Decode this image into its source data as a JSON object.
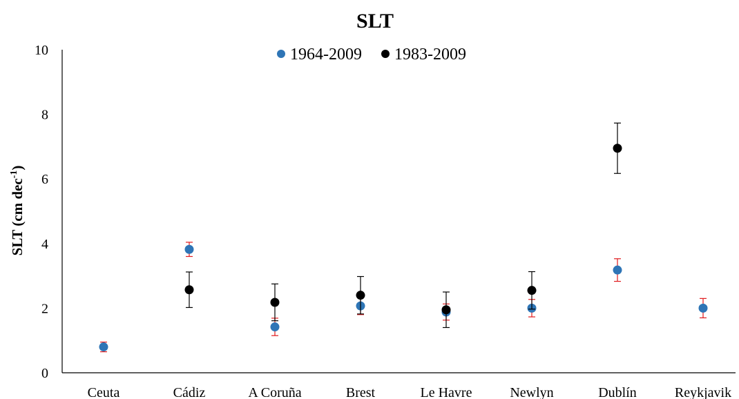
{
  "chart_data": {
    "type": "scatter",
    "title": "SLT",
    "ylabel": "SLT (cm dec",
    "ylabel_sup": "-1",
    "ylabel_close": ")",
    "ylim": [
      0,
      10
    ],
    "yticks": [
      0,
      2,
      4,
      6,
      8,
      10
    ],
    "categories": [
      "Ceuta",
      "Cádiz",
      "A Coruña",
      "Brest",
      "Le Havre",
      "Newlyn",
      "Dublín",
      "Reykjavik"
    ],
    "legend_position": "top-center",
    "grid": false,
    "series": [
      {
        "name": "1964-2009",
        "color": "#2E75B6",
        "error_color": "#E0191B",
        "values": [
          0.8,
          3.82,
          1.42,
          2.07,
          1.88,
          2.0,
          3.18,
          2.0
        ],
        "errors": [
          0.15,
          0.22,
          0.27,
          0.27,
          0.25,
          0.27,
          0.35,
          0.3
        ]
      },
      {
        "name": "1983-2009",
        "color": "#000000",
        "error_color": "#000000",
        "values": [
          null,
          2.57,
          2.18,
          2.4,
          1.95,
          2.55,
          6.95,
          null
        ],
        "errors": [
          null,
          0.55,
          0.57,
          0.58,
          0.55,
          0.58,
          0.78,
          null
        ]
      }
    ]
  }
}
